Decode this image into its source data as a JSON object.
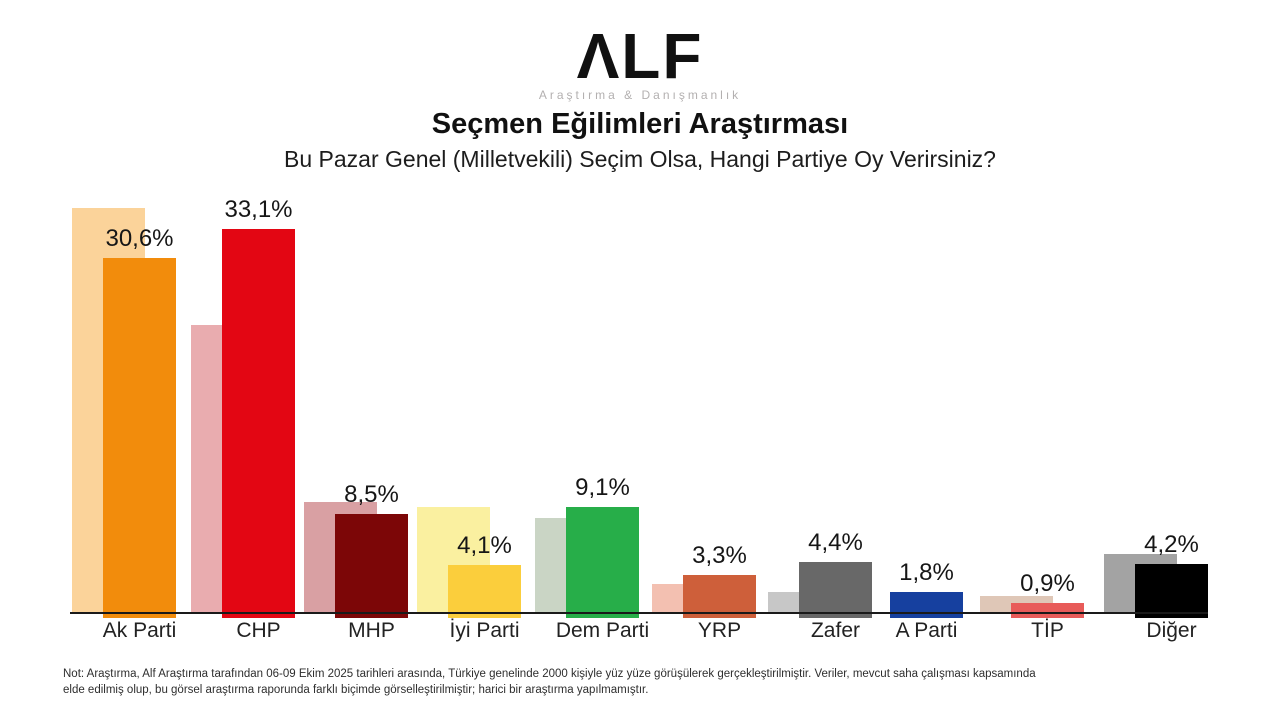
{
  "header": {
    "logo": {
      "text": "ALF",
      "display": "ΛLF",
      "tagline": "Araştırma & Danışmanlık"
    },
    "title": "Seçmen Eğilimleri Araştırması",
    "subtitle": "Bu Pazar Genel (Milletvekili) Seçim Olsa, Hangi Partiye Oy Verirsiniz?"
  },
  "chart_data": {
    "type": "bar",
    "title": "Seçmen Eğilimleri Araştırması",
    "xlabel": "",
    "ylabel": "",
    "ylim": [
      0,
      36.5
    ],
    "grid": false,
    "y_axis_shown": false,
    "legend": "none",
    "categories": [
      "Ak Parti",
      "CHP",
      "MHP",
      "İyi Parti",
      "Dem Parti",
      "YRP",
      "Zafer",
      "A Parti",
      "TİP",
      "Diğer"
    ],
    "series": [
      {
        "name": "onceki-acik-renk-cubuklar (etiketsiz, piksel yüksekliğinden tahmin)",
        "values": [
          34.9,
          24.8,
          9.6,
          9.1,
          8.2,
          2.5,
          1.8,
          null,
          1.5,
          5.1
        ]
      },
      {
        "name": "guncel-anket (etiketli)",
        "values": [
          30.6,
          33.1,
          8.5,
          4.1,
          9.1,
          3.3,
          4.4,
          1.8,
          0.9,
          4.2
        ],
        "labels": [
          "30,6%",
          "33,1%",
          "8,5%",
          "4,1%",
          "9,1%",
          "3,3%",
          "4,4%",
          "1,8%",
          "0,9%",
          "4,2%"
        ]
      }
    ],
    "colors": {
      "light": [
        "#FBD39A",
        "#E9ACAF",
        "#D9A0A3",
        "#FAF0A0",
        "#CAD5C5",
        "#F3C0B1",
        "#C7C7C7",
        null,
        "#DFC7B7",
        "#A3A3A3"
      ],
      "dark": [
        "#F28C0C",
        "#E30613",
        "#7C0607",
        "#FBCE3C",
        "#27AE49",
        "#CE5F3A",
        "#686868",
        "#16409F",
        "#E85B59",
        "#000000"
      ]
    },
    "axis_color": "#1a1a1a"
  },
  "footnote": {
    "lines": [
      "Not: Araştırma, Alf Araştırma tarafından 06-09 Ekim 2025 tarihleri arasında, Türkiye genelinde 2000 kişiyle yüz yüze görüşülerek gerçekleştirilmiştir. Veriler, mevcut saha çalışması kapsamında",
      "elde edilmiş olup, bu görsel araştırma raporunda farklı biçimde görselleştirilmiştir; harici bir araştırma yapılmamıştır."
    ]
  }
}
